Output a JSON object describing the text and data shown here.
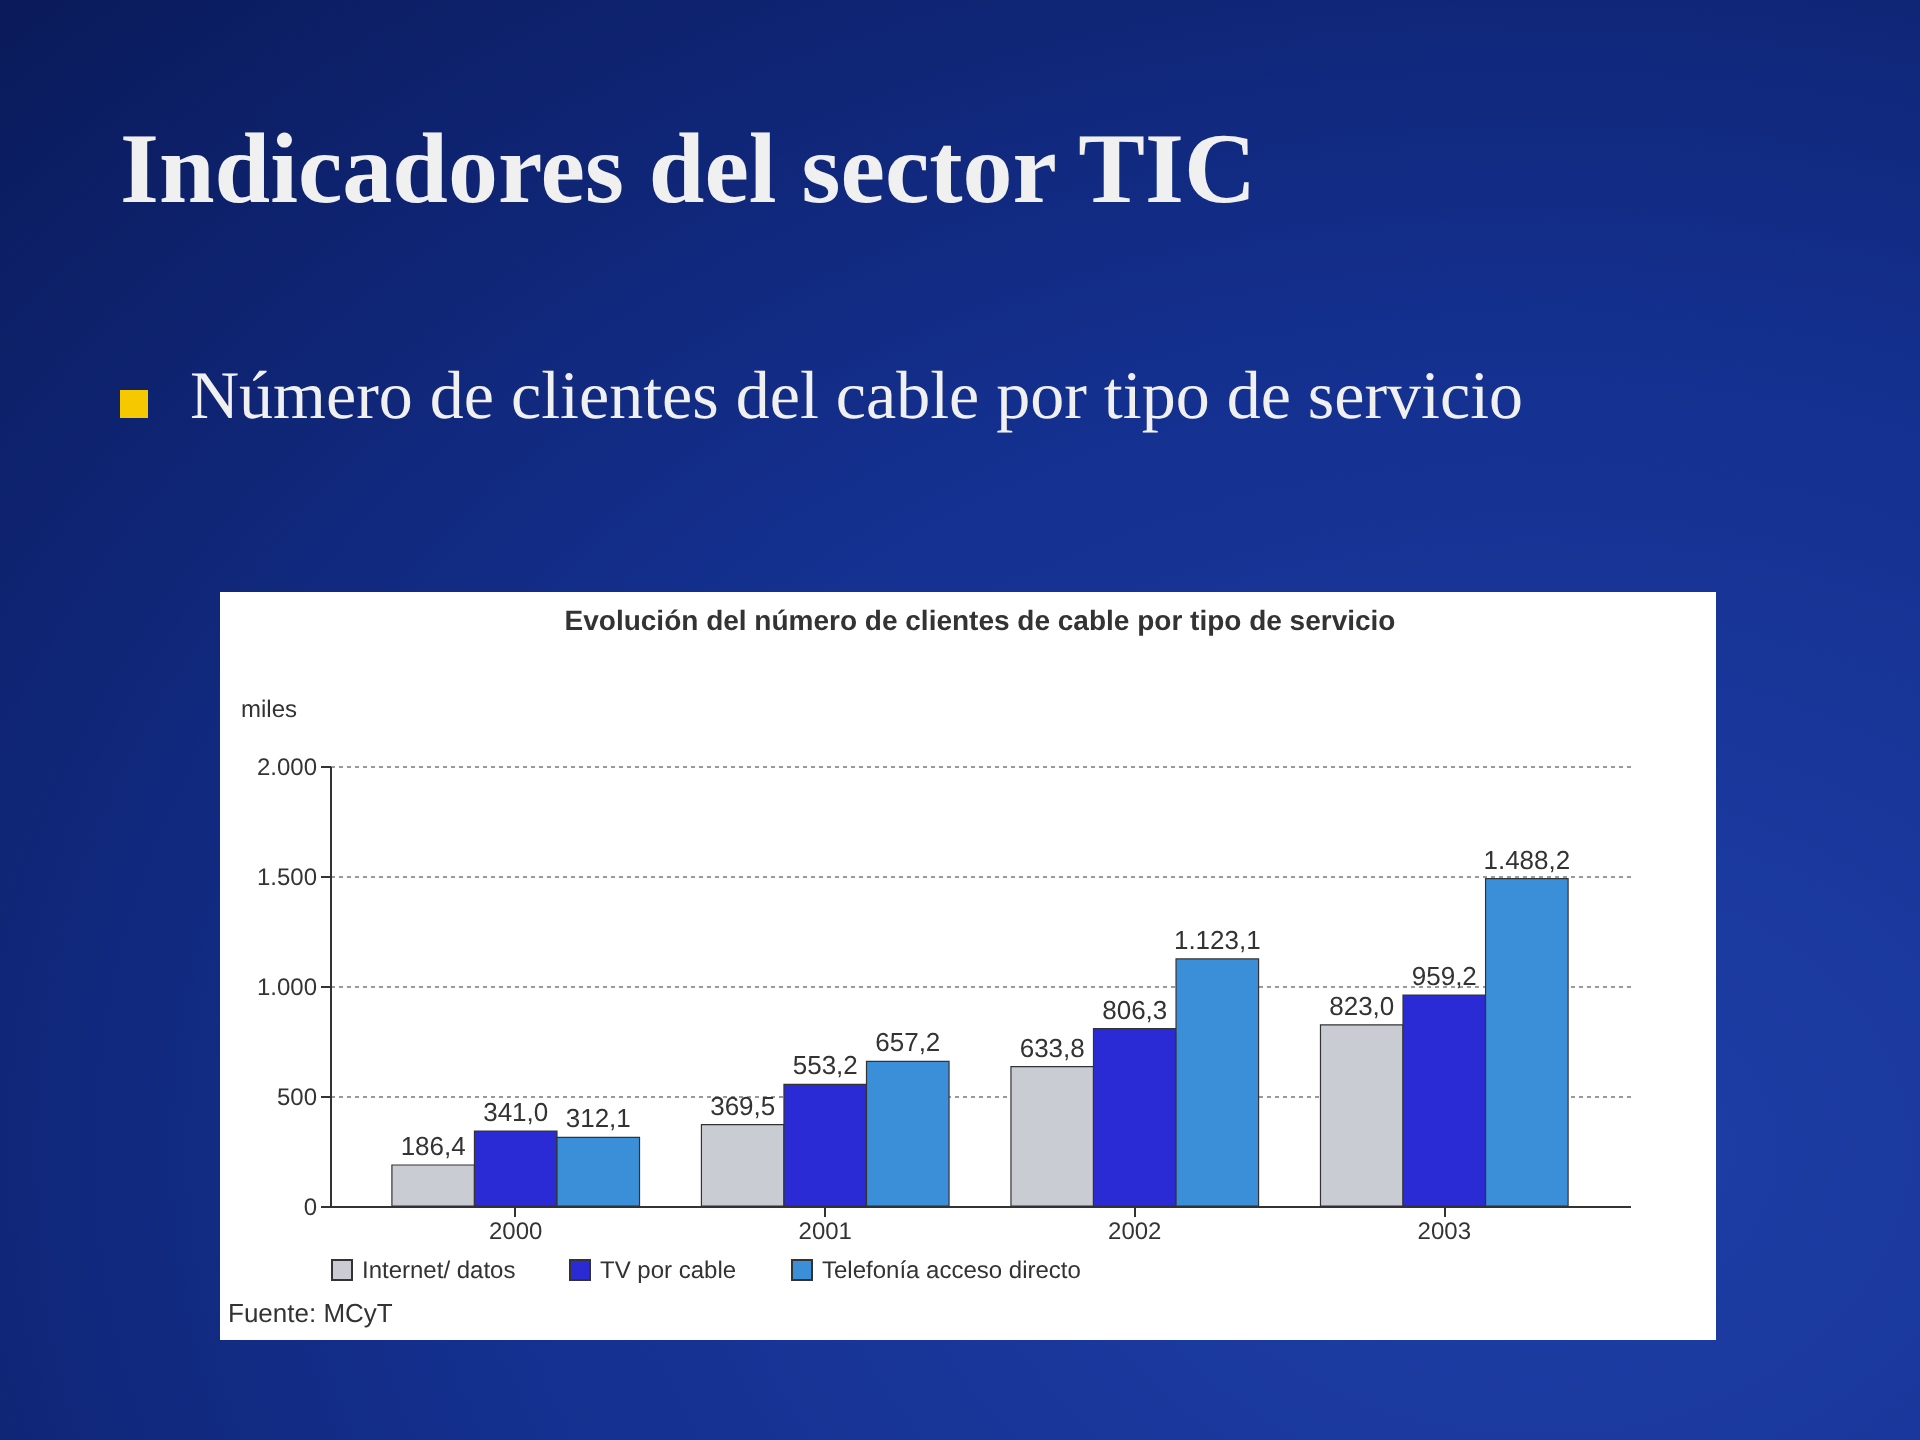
{
  "chart_data": {
    "type": "bar",
    "title": "Indicadores del sector TIC",
    "subtitle": "Número de clientes del cable por tipo de servicio",
    "xlabel": "Evolución del número de clientes de cable por tipo de servicio",
    "ylabel": "miles",
    "categories": [
      "2000",
      "2001",
      "2002",
      "2003"
    ],
    "series": [
      {
        "name": "Internet/ datos",
        "color": "#c9ccd3",
        "values": [
          186.4,
          369.5,
          633.8,
          823.0
        ],
        "value_labels": [
          "186,4",
          "369,5",
          "633,8",
          "823,0"
        ]
      },
      {
        "name": "TV por cable",
        "color": "#2b2bd6",
        "values": [
          341.0,
          553.2,
          806.3,
          959.2
        ],
        "value_labels": [
          "341,0",
          "553,2",
          "806,3",
          "959,2"
        ]
      },
      {
        "name": "Telefonía acceso directo",
        "color": "#3b8fd9",
        "values": [
          312.1,
          657.2,
          1123.1,
          1488.2
        ],
        "value_labels": [
          "312,1",
          "657,2",
          "1.123,1",
          "1.488,2"
        ]
      }
    ],
    "ylim": [
      0,
      2000
    ],
    "yticks": [
      0,
      500,
      {
        "value": 1000,
        "label": "1.000"
      },
      {
        "value": 1500,
        "label": "1.500"
      },
      {
        "value": 2000,
        "label": "2.000"
      }
    ],
    "grid": "y",
    "legend": "bottom",
    "annotations": [
      "Fuente: MCyT"
    ]
  }
}
